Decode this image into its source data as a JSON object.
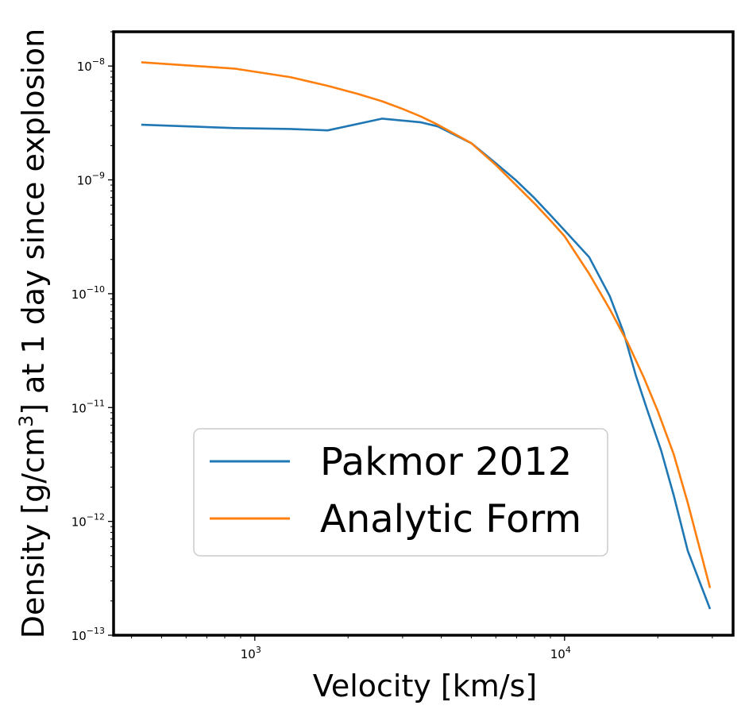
{
  "chart_data": {
    "type": "line",
    "xlabel": "Velocity [km/s]",
    "ylabel": "Density [g/cm³] at 1 day since explosion",
    "xscale": "log",
    "yscale": "log",
    "xlim": [
      350,
      35000
    ],
    "ylim": [
      1e-13,
      2e-08
    ],
    "xticks": [
      {
        "value": 1000,
        "base": "10",
        "exp": "3"
      },
      {
        "value": 10000,
        "base": "10",
        "exp": "4"
      }
    ],
    "yticks": [
      {
        "value": 1e-13,
        "base": "10",
        "exp": "−13"
      },
      {
        "value": 1e-12,
        "base": "10",
        "exp": "−12"
      },
      {
        "value": 1e-11,
        "base": "10",
        "exp": "−11"
      },
      {
        "value": 1e-10,
        "base": "10",
        "exp": "−10"
      },
      {
        "value": 1e-09,
        "base": "10",
        "exp": "−9"
      },
      {
        "value": 1e-08,
        "base": "10",
        "exp": "−8"
      }
    ],
    "grid": false,
    "legend_position": "lower-center",
    "series": [
      {
        "name": "Pakmor 2012",
        "color": "#1f77b4",
        "x": [
          430,
          860,
          1300,
          1720,
          2580,
          3440,
          3900,
          5000,
          6000,
          7000,
          8000,
          9000,
          10000,
          12000,
          14000,
          15500,
          17000,
          18500,
          20500,
          22500,
          25000,
          29500
        ],
        "y": [
          3.05e-09,
          2.85e-09,
          2.8e-09,
          2.72e-09,
          3.45e-09,
          3.2e-09,
          2.95e-09,
          2.1e-09,
          1.4e-09,
          9.8e-10,
          6.9e-10,
          4.9e-10,
          3.6e-10,
          2.1e-10,
          9.5e-11,
          4.6e-11,
          1.9e-11,
          9.5e-12,
          4.2e-12,
          1.7e-12,
          5.5e-13,
          1.7e-13
        ]
      },
      {
        "name": "Analytic Form",
        "color": "#ff7f0e",
        "x": [
          430,
          860,
          1300,
          1720,
          2150,
          2580,
          3000,
          3440,
          3900,
          5000,
          6000,
          7000,
          8000,
          9000,
          10000,
          12000,
          14000,
          16000,
          18000,
          20000,
          22500,
          25000,
          29500
        ],
        "y": [
          1.08e-08,
          9.5e-09,
          8e-09,
          6.7e-09,
          5.7e-09,
          4.9e-09,
          4.2e-09,
          3.6e-09,
          3.05e-09,
          2.1e-09,
          1.35e-09,
          8.9e-10,
          6.2e-10,
          4.4e-10,
          3.2e-10,
          1.5e-10,
          7.3e-11,
          3.7e-11,
          1.85e-11,
          9.3e-12,
          3.9e-12,
          1.45e-12,
          2.6e-13
        ]
      }
    ]
  }
}
